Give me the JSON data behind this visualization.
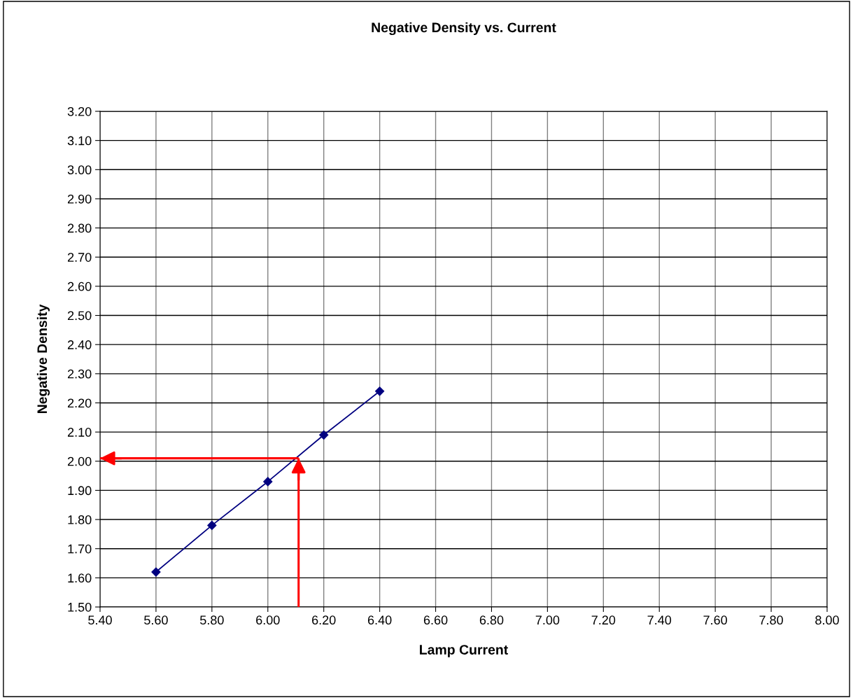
{
  "chart_data": {
    "type": "line",
    "title": "Negative Density vs. Current",
    "xlabel": "Lamp Current",
    "ylabel": "Negative Density",
    "x": [
      5.6,
      5.8,
      6.0,
      6.2,
      6.4
    ],
    "series": [
      {
        "color": "#000080",
        "values": [
          1.62,
          1.78,
          1.93,
          2.09,
          2.24
        ],
        "marker": "diamond"
      }
    ],
    "ref_lines": [
      {
        "axis": "x",
        "value": 6.11,
        "color": "#ff0000"
      },
      {
        "axis": "y",
        "value": 2.01,
        "color": "#ff0000"
      }
    ],
    "xlim": [
      5.4,
      8.0
    ],
    "xticks": [
      {
        "value": 5.4,
        "label": "5.40"
      },
      {
        "value": 5.6,
        "label": "5.60"
      },
      {
        "value": 5.8,
        "label": "5.80"
      },
      {
        "value": 6.0,
        "label": "6.00"
      },
      {
        "value": 6.2,
        "label": "6.20"
      },
      {
        "value": 6.4,
        "label": "6.40"
      },
      {
        "value": 6.6,
        "label": "6.60"
      },
      {
        "value": 6.8,
        "label": "6.80"
      },
      {
        "value": 7.0,
        "label": "7.00"
      },
      {
        "value": 7.2,
        "label": "7.20"
      },
      {
        "value": 7.4,
        "label": "7.40"
      },
      {
        "value": 7.6,
        "label": "7.60"
      },
      {
        "value": 7.8,
        "label": "7.80"
      },
      {
        "value": 8.0,
        "label": "8.00"
      }
    ],
    "ylim": [
      1.5,
      3.2
    ],
    "yticks": [
      {
        "value": 1.5,
        "label": "1.50"
      },
      {
        "value": 1.6,
        "label": "1.60"
      },
      {
        "value": 1.7,
        "label": "1.70"
      },
      {
        "value": 1.8,
        "label": "1.80"
      },
      {
        "value": 1.9,
        "label": "1.90"
      },
      {
        "value": 2.0,
        "label": "2.00"
      },
      {
        "value": 2.1,
        "label": "2.10"
      },
      {
        "value": 2.2,
        "label": "2.20"
      },
      {
        "value": 2.3,
        "label": "2.30"
      },
      {
        "value": 2.4,
        "label": "2.40"
      },
      {
        "value": 2.5,
        "label": "2.50"
      },
      {
        "value": 2.6,
        "label": "2.60"
      },
      {
        "value": 2.7,
        "label": "2.70"
      },
      {
        "value": 2.8,
        "label": "2.80"
      },
      {
        "value": 2.9,
        "label": "2.90"
      },
      {
        "value": 3.0,
        "label": "3.00"
      },
      {
        "value": 3.1,
        "label": "3.10"
      },
      {
        "value": 3.2,
        "label": "3.20"
      }
    ],
    "grid": true,
    "legend": false,
    "line_style": "solid"
  }
}
